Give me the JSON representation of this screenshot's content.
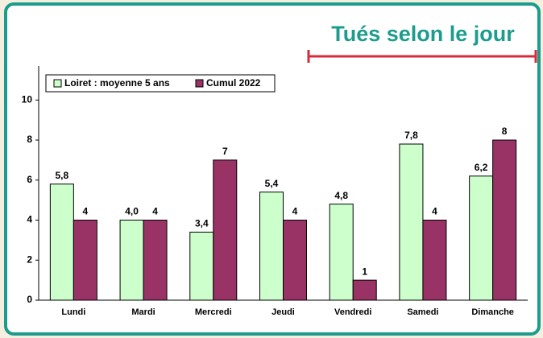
{
  "chart_data": {
    "type": "bar",
    "title": "Tués selon le jour",
    "categories": [
      "Lundi",
      "Mardi",
      "Mercredi",
      "Jeudi",
      "Vendredi",
      "Samedi",
      "Dimanche"
    ],
    "series": [
      {
        "name": "Loiret : moyenne 5 ans",
        "color": "#ccffcc",
        "values": [
          5.8,
          4.0,
          3.4,
          5.4,
          4.8,
          7.8,
          6.2
        ],
        "value_labels": [
          "5,8",
          "4,0",
          "3,4",
          "5,4",
          "4,8",
          "7,8",
          "6,2"
        ]
      },
      {
        "name": "Cumul 2022",
        "color": "#993366",
        "values": [
          4,
          4,
          7,
          4,
          1,
          4,
          8
        ]
      }
    ],
    "ylim": [
      0,
      11.7
    ],
    "yticks": [
      0,
      2,
      4,
      6,
      8,
      10
    ],
    "grid": false,
    "legend": "top-left"
  }
}
